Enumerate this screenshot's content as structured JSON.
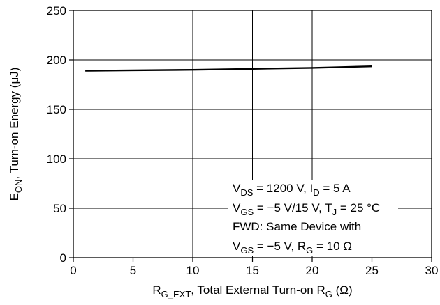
{
  "chart_data": {
    "type": "line",
    "x": [
      1,
      5,
      10,
      15,
      20,
      25
    ],
    "series": [
      {
        "values": [
          189,
          189.5,
          190,
          191,
          192,
          193.5
        ]
      }
    ],
    "xlim": [
      0,
      30
    ],
    "ylim": [
      0,
      250
    ],
    "xticks": [
      0,
      5,
      10,
      15,
      20,
      25,
      30
    ],
    "yticks": [
      0,
      50,
      100,
      150,
      200,
      250
    ],
    "grid": true,
    "xlabel": {
      "pre": "R",
      "sub": "G_EXT",
      "mid": ", Total External Turn-on R",
      "sub2": "G",
      "post": " (Ω)"
    },
    "ylabel": {
      "pre": "E",
      "sub": "ON",
      "post": ", Turn-on Energy (μJ)"
    },
    "annotation": {
      "line1": {
        "a": "V",
        "a_sub": "DS",
        "b": " = 1200 V, I",
        "b_sub": "D",
        "c": " = 5 A"
      },
      "line2": {
        "a": "V",
        "a_sub": "GS",
        "b": " = −5 V/15 V, T",
        "b_sub": "J",
        "c": " = 25 °C"
      },
      "line3": {
        "a": "FWD: Same Device with"
      },
      "line4": {
        "a": "V",
        "a_sub": "GS",
        "b": " = −5 V, R",
        "b_sub": "G",
        "c": " = 10 Ω"
      }
    }
  }
}
